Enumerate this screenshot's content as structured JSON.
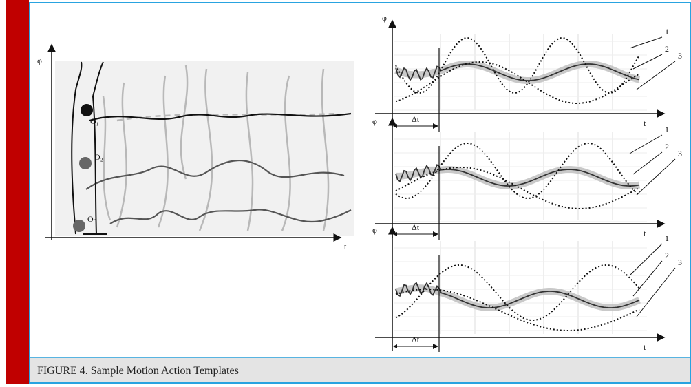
{
  "figure": {
    "caption": "FIGURE 4. Sample Motion Action Templates",
    "left_panel": {
      "y_label": "φ",
      "x_label": "t",
      "joints": [
        "O₁",
        "O₂",
        "Oₙ"
      ]
    },
    "right_panels": [
      {
        "y_label": "φ",
        "x_label": "t",
        "interval": "Δt",
        "curve_labels": [
          "1",
          "2",
          "3"
        ]
      },
      {
        "y_label": "φ",
        "x_label": "t",
        "interval": "Δt",
        "curve_labels": [
          "1",
          "2",
          "3"
        ]
      },
      {
        "y_label": "φ",
        "x_label": "t",
        "interval": "Δt",
        "curve_labels": [
          "1",
          "2",
          "3"
        ]
      }
    ]
  }
}
